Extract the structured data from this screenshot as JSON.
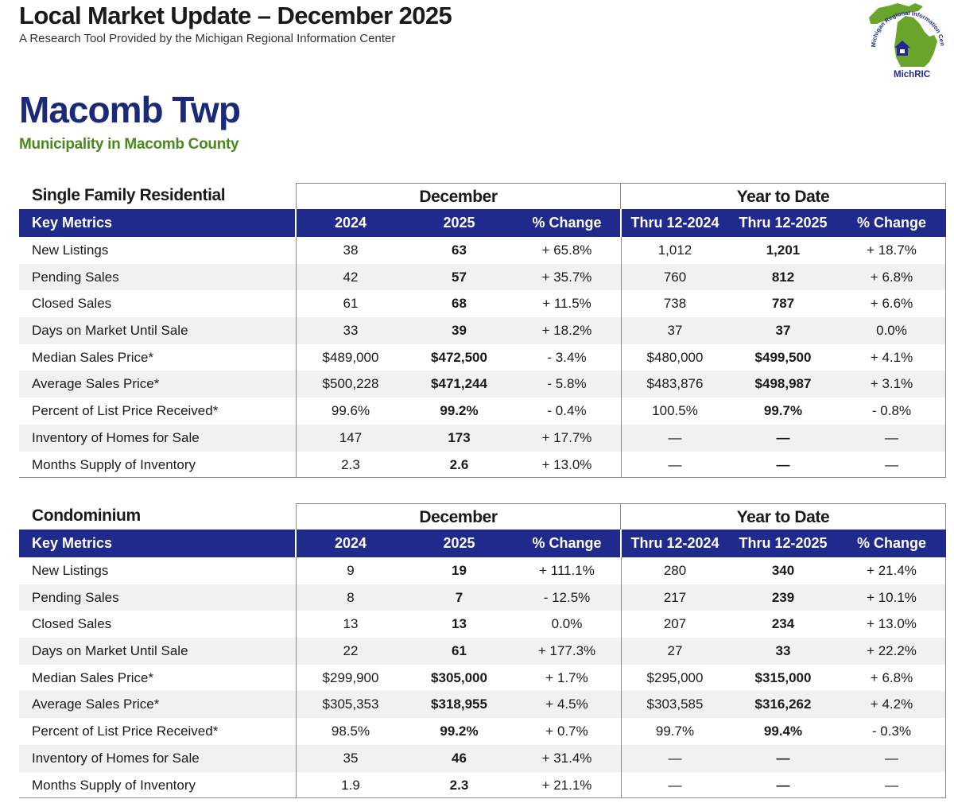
{
  "header": {
    "title": "Local Market Update – December 2025",
    "subtitle": "A Research Tool Provided by the Michigan Regional Information Center",
    "logo_text": "MichRIC",
    "logo_ring_text": "Michigan Regional Information Center"
  },
  "area": {
    "name": "Macomb Twp",
    "description": "Municipality in Macomb County"
  },
  "sections": [
    {
      "property_type": "Single Family Residential",
      "group_month": "December",
      "group_ytd": "Year to Date",
      "columns": [
        "Key Metrics",
        "2024",
        "2025",
        "% Change",
        "Thru 12-2024",
        "Thru 12-2025",
        "% Change"
      ],
      "rows": [
        [
          "New Listings",
          "38",
          "63",
          "+ 65.8%",
          "1,012",
          "1,201",
          "+ 18.7%"
        ],
        [
          "Pending Sales",
          "42",
          "57",
          "+ 35.7%",
          "760",
          "812",
          "+ 6.8%"
        ],
        [
          "Closed Sales",
          "61",
          "68",
          "+ 11.5%",
          "738",
          "787",
          "+ 6.6%"
        ],
        [
          "Days on Market Until Sale",
          "33",
          "39",
          "+ 18.2%",
          "37",
          "37",
          "0.0%"
        ],
        [
          "Median Sales Price*",
          "$489,000",
          "$472,500",
          "- 3.4%",
          "$480,000",
          "$499,500",
          "+ 4.1%"
        ],
        [
          "Average Sales Price*",
          "$500,228",
          "$471,244",
          "- 5.8%",
          "$483,876",
          "$498,987",
          "+ 3.1%"
        ],
        [
          "Percent of List Price Received*",
          "99.6%",
          "99.2%",
          "- 0.4%",
          "100.5%",
          "99.7%",
          "- 0.8%"
        ],
        [
          "Inventory of Homes for Sale",
          "147",
          "173",
          "+ 17.7%",
          "—",
          "—",
          "—"
        ],
        [
          "Months Supply of Inventory",
          "2.3",
          "2.6",
          "+ 13.0%",
          "—",
          "—",
          "—"
        ]
      ]
    },
    {
      "property_type": "Condominium",
      "group_month": "December",
      "group_ytd": "Year to Date",
      "columns": [
        "Key Metrics",
        "2024",
        "2025",
        "% Change",
        "Thru 12-2024",
        "Thru 12-2025",
        "% Change"
      ],
      "rows": [
        [
          "New Listings",
          "9",
          "19",
          "+ 111.1%",
          "280",
          "340",
          "+ 21.4%"
        ],
        [
          "Pending Sales",
          "8",
          "7",
          "- 12.5%",
          "217",
          "239",
          "+ 10.1%"
        ],
        [
          "Closed Sales",
          "13",
          "13",
          "0.0%",
          "207",
          "234",
          "+ 13.0%"
        ],
        [
          "Days on Market Until Sale",
          "22",
          "61",
          "+ 177.3%",
          "27",
          "33",
          "+ 22.2%"
        ],
        [
          "Median Sales Price*",
          "$299,900",
          "$305,000",
          "+ 1.7%",
          "$295,000",
          "$315,000",
          "+ 6.8%"
        ],
        [
          "Average Sales Price*",
          "$305,353",
          "$318,955",
          "+ 4.5%",
          "$303,585",
          "$316,262",
          "+ 4.2%"
        ],
        [
          "Percent of List Price Received*",
          "98.5%",
          "99.2%",
          "+ 0.7%",
          "99.7%",
          "99.4%",
          "- 0.3%"
        ],
        [
          "Inventory of Homes for Sale",
          "35",
          "46",
          "+ 31.4%",
          "—",
          "—",
          "—"
        ],
        [
          "Months Supply of Inventory",
          "1.9",
          "2.3",
          "+ 21.1%",
          "—",
          "—",
          "—"
        ]
      ]
    }
  ],
  "colors": {
    "header_bar": "#1f2a8c",
    "area_name": "#1b2a78",
    "area_desc": "#4a8a1c",
    "logo_green": "#6aa42a",
    "logo_blue": "#1f2a8c"
  }
}
